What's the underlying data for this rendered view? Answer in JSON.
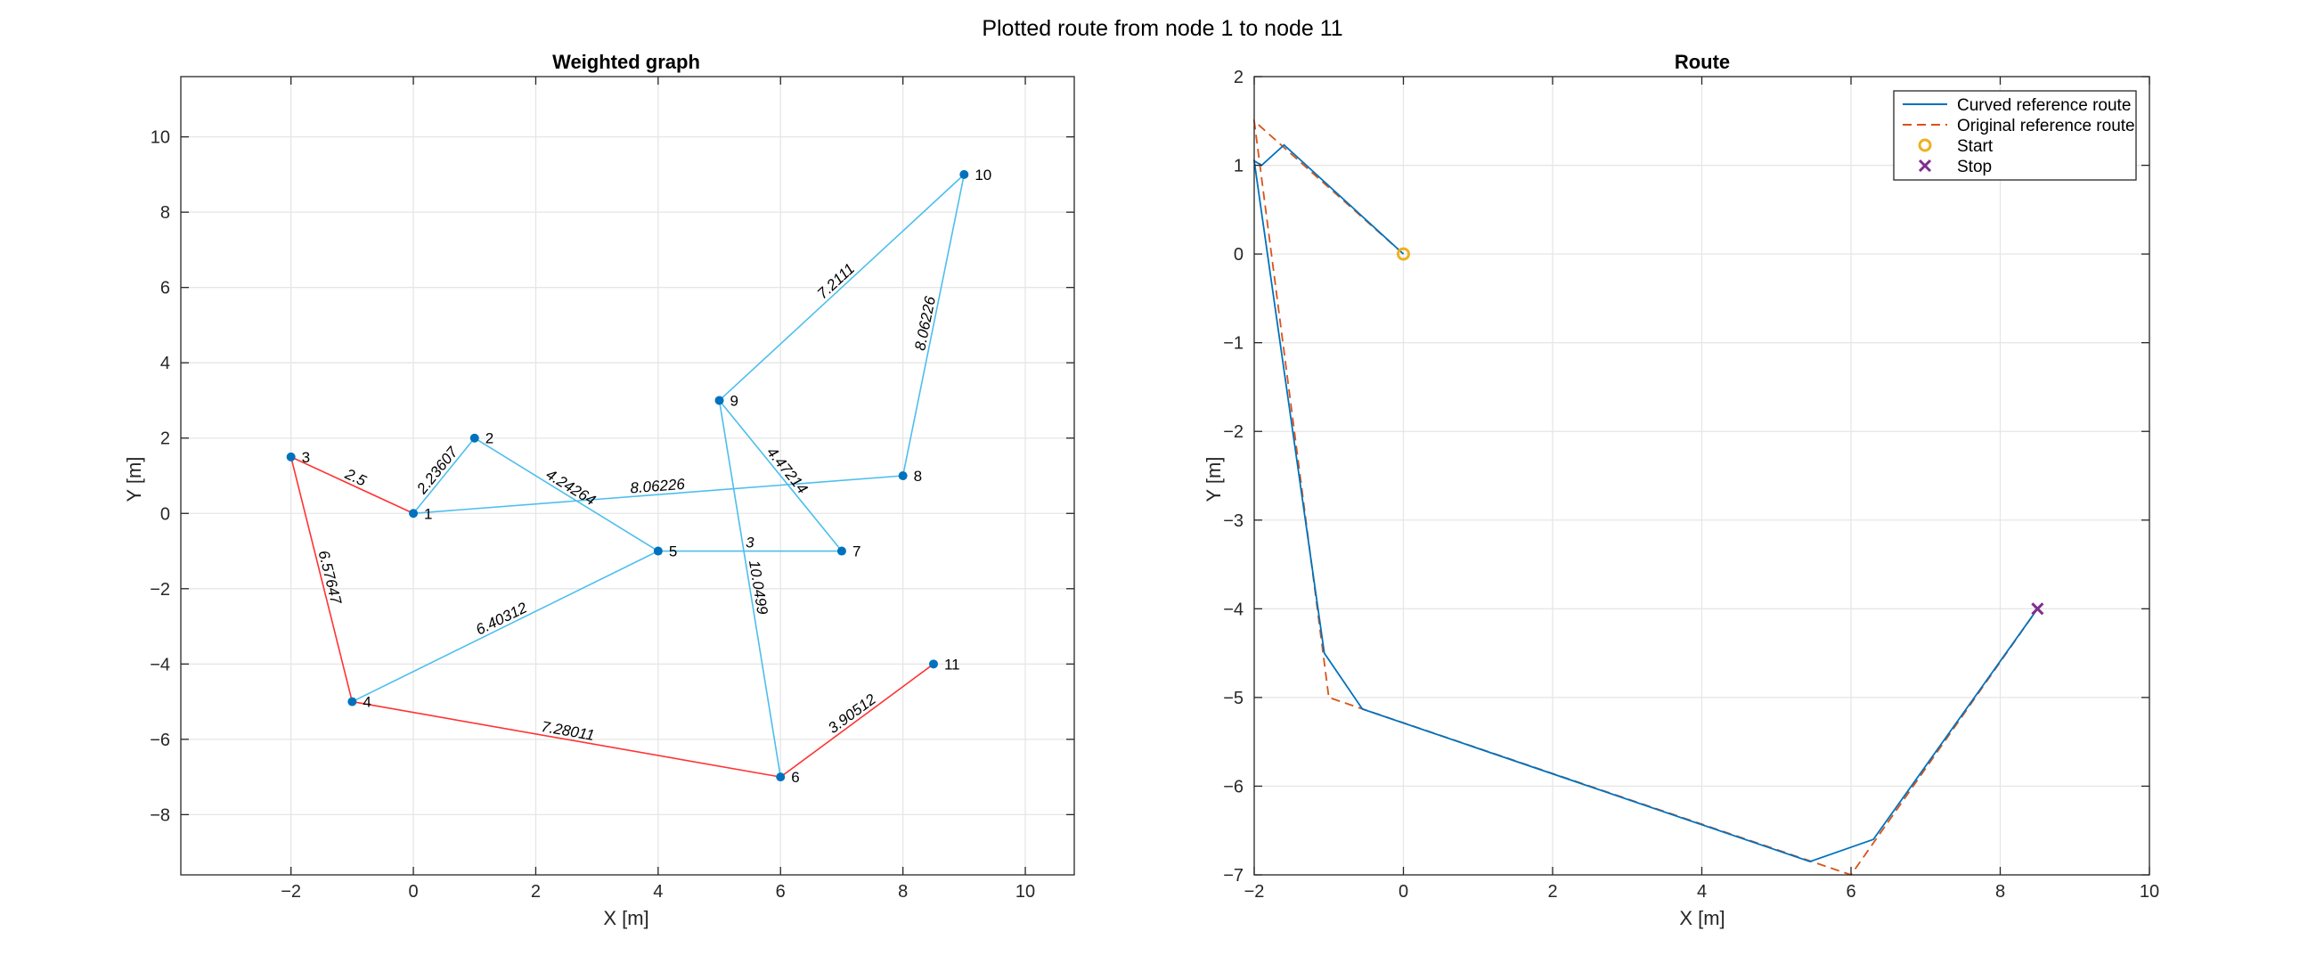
{
  "figure": {
    "title": "Plotted route from node 1 to node 11"
  },
  "chart_data": [
    {
      "type": "graph",
      "title": "Weighted graph",
      "xlabel": "X [m]",
      "ylabel": "Y [m]",
      "xlim": [
        -3.8,
        10.8
      ],
      "ylim": [
        -9.6,
        11.6
      ],
      "xticks": [
        -2,
        0,
        2,
        4,
        6,
        8,
        10
      ],
      "yticks": [
        -8,
        -6,
        -4,
        -2,
        0,
        2,
        4,
        6,
        8,
        10
      ],
      "grid": true,
      "colors": {
        "edge": "#4dbeee",
        "path": "#ff3333",
        "node": "#0072bd"
      },
      "nodes": [
        {
          "id": "1",
          "x": 0,
          "y": 0
        },
        {
          "id": "2",
          "x": 1,
          "y": 2
        },
        {
          "id": "3",
          "x": -2,
          "y": 1.5
        },
        {
          "id": "4",
          "x": -1,
          "y": -5
        },
        {
          "id": "5",
          "x": 4,
          "y": -1
        },
        {
          "id": "6",
          "x": 6,
          "y": -7
        },
        {
          "id": "7",
          "x": 7,
          "y": -1
        },
        {
          "id": "8",
          "x": 8,
          "y": 1
        },
        {
          "id": "9",
          "x": 5,
          "y": 3
        },
        {
          "id": "10",
          "x": 9,
          "y": 9
        },
        {
          "id": "11",
          "x": 8.5,
          "y": -4
        }
      ],
      "edges": [
        {
          "from": "1",
          "to": "2",
          "weight": "2.23607",
          "on_path": false
        },
        {
          "from": "1",
          "to": "3",
          "weight": "2.5",
          "on_path": true
        },
        {
          "from": "1",
          "to": "8",
          "weight": "8.06226",
          "on_path": false
        },
        {
          "from": "2",
          "to": "5",
          "weight": "4.24264",
          "on_path": false
        },
        {
          "from": "3",
          "to": "4",
          "weight": "6.57647",
          "on_path": true
        },
        {
          "from": "4",
          "to": "5",
          "weight": "6.40312",
          "on_path": false
        },
        {
          "from": "4",
          "to": "6",
          "weight": "7.28011",
          "on_path": true
        },
        {
          "from": "5",
          "to": "7",
          "weight": "3",
          "on_path": false
        },
        {
          "from": "6",
          "to": "9",
          "weight": "10.0499",
          "on_path": false
        },
        {
          "from": "6",
          "to": "11",
          "weight": "3.90512",
          "on_path": true
        },
        {
          "from": "7",
          "to": "9",
          "weight": "4.47214",
          "on_path": false
        },
        {
          "from": "8",
          "to": "10",
          "weight": "8.06226",
          "on_path": false
        },
        {
          "from": "9",
          "to": "10",
          "weight": "7.2111",
          "on_path": false
        }
      ]
    },
    {
      "type": "line",
      "title": "Route",
      "xlabel": "X [m]",
      "ylabel": "Y [m]",
      "xlim": [
        -2,
        10
      ],
      "ylim": [
        -7,
        2
      ],
      "xticks": [
        -2,
        0,
        2,
        4,
        6,
        8,
        10
      ],
      "yticks": [
        -7,
        -6,
        -5,
        -4,
        -3,
        -2,
        -1,
        0,
        1,
        2
      ],
      "grid": true,
      "legend_position": "top-right",
      "series": [
        {
          "name": "Curved reference route",
          "style": "solid",
          "color": "#0072bd",
          "x": [
            0,
            -1.6,
            -1.9,
            -2,
            -1.06,
            -0.55,
            5.45,
            6.3,
            8.5
          ],
          "y": [
            0,
            1.23,
            1.0,
            1.05,
            -4.5,
            -5.13,
            -6.85,
            -6.6,
            -4
          ]
        },
        {
          "name": "Original reference route",
          "style": "dashed",
          "color": "#d95319",
          "x": [
            0,
            -2,
            -1,
            6,
            8.5
          ],
          "y": [
            0,
            1.5,
            -5,
            -7,
            -4
          ]
        },
        {
          "name": "Start",
          "style": "marker-circle",
          "color": "#edb120",
          "x": [
            0
          ],
          "y": [
            0
          ]
        },
        {
          "name": "Stop",
          "style": "marker-x",
          "color": "#7e2f8e",
          "x": [
            8.5
          ],
          "y": [
            -4
          ]
        }
      ]
    }
  ]
}
